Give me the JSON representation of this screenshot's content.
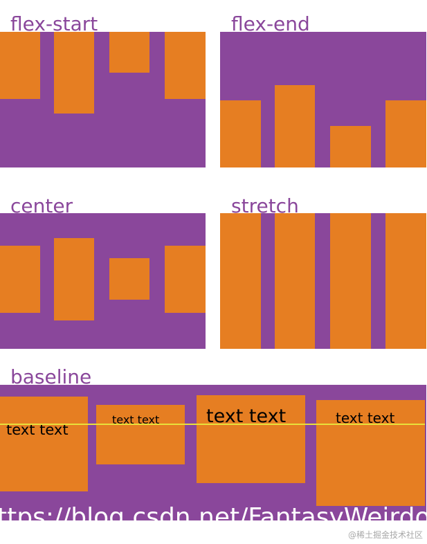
{
  "panels": {
    "flex_start": {
      "label": "flex-start"
    },
    "flex_end": {
      "label": "flex-end"
    },
    "center": {
      "label": "center"
    },
    "stretch": {
      "label": "stretch"
    },
    "baseline": {
      "label": "baseline",
      "items": [
        "text text",
        "text text",
        "text text",
        "text text"
      ]
    }
  },
  "watermark": "ttps://blog.csdn.net/FantasyWeirdo",
  "site_mark": "@稀土掘金技术社区",
  "colors": {
    "container": "#8a479b",
    "item": "#e67e22",
    "baseline_guide": "#e8e13a",
    "label": "#8a479b"
  }
}
